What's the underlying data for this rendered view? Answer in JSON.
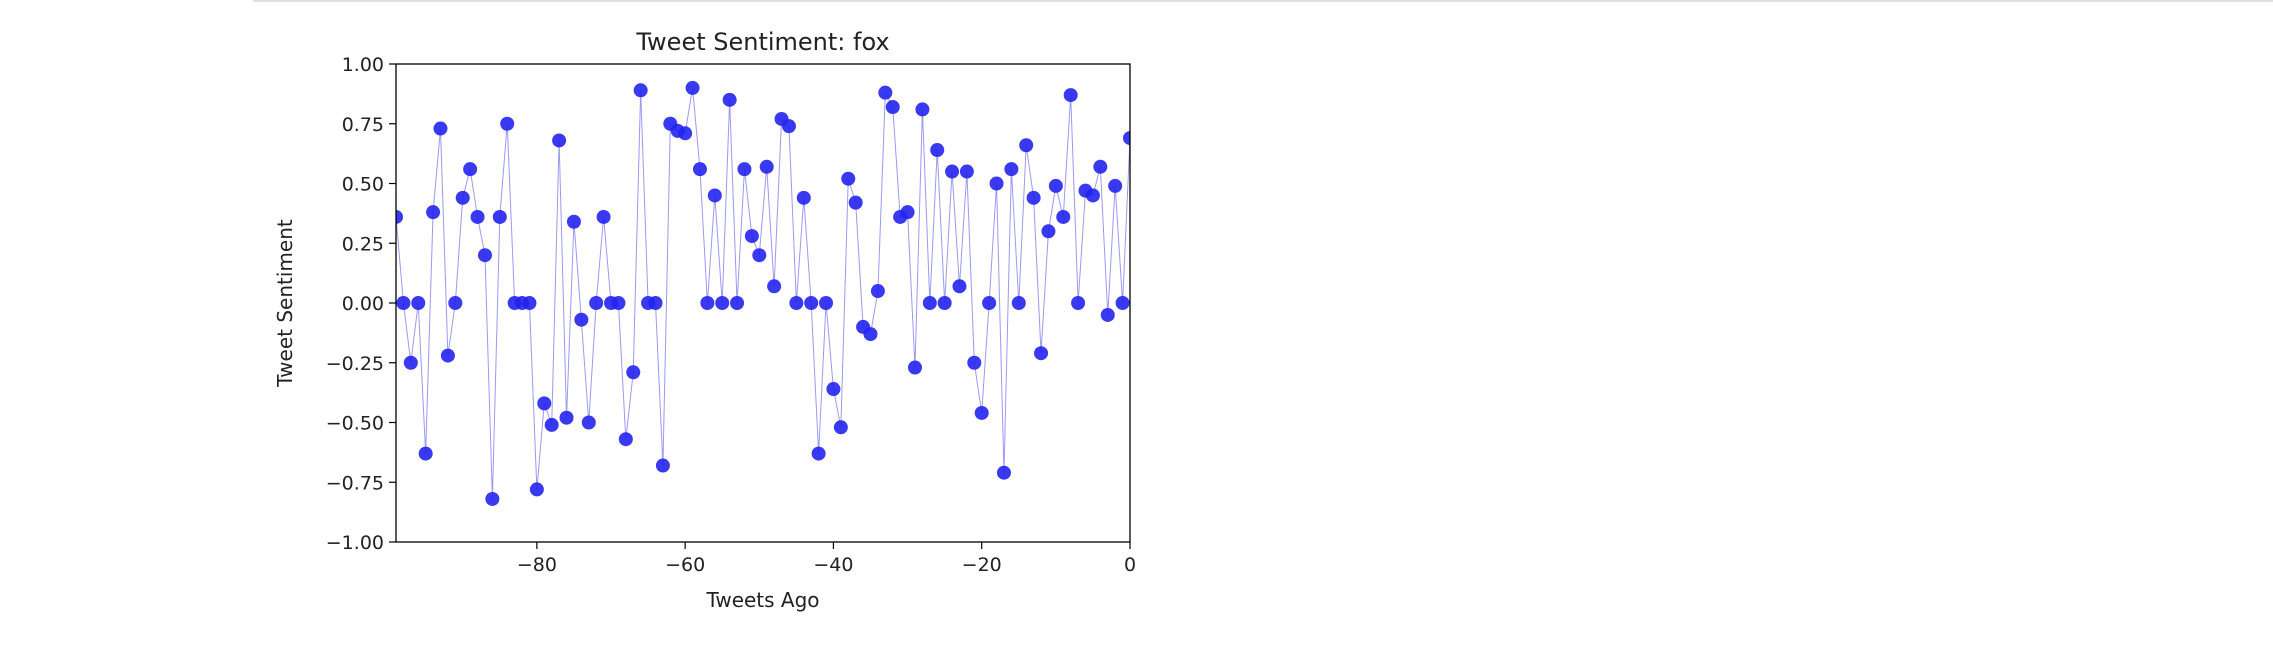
{
  "chart_data": {
    "type": "scatter",
    "title": "Tweet Sentiment: fox",
    "xlabel": "Tweets Ago",
    "ylabel": "Tweet Sentiment",
    "xlim": [
      -99,
      0
    ],
    "ylim": [
      -1.0,
      1.0
    ],
    "xticks": [
      -80,
      -60,
      -40,
      -20,
      0
    ],
    "xtick_labels": [
      "−80",
      "−60",
      "−40",
      "−20",
      "0"
    ],
    "yticks": [
      -1.0,
      -0.75,
      -0.5,
      -0.25,
      0.0,
      0.25,
      0.5,
      0.75,
      1.0
    ],
    "ytick_labels": [
      "−1.00",
      "−0.75",
      "−0.50",
      "−0.25",
      "0.00",
      "0.25",
      "0.50",
      "0.75",
      "1.00"
    ],
    "grid": false,
    "marker_color": "#2323f0",
    "line_color": "#9a9af2",
    "x": [
      -99,
      -98,
      -97,
      -96,
      -95,
      -94,
      -93,
      -92,
      -91,
      -90,
      -89,
      -88,
      -87,
      -86,
      -85,
      -84,
      -83,
      -82,
      -81,
      -80,
      -79,
      -78,
      -77,
      -76,
      -75,
      -74,
      -73,
      -72,
      -71,
      -70,
      -69,
      -68,
      -67,
      -66,
      -65,
      -64,
      -63,
      -62,
      -61,
      -60,
      -59,
      -58,
      -57,
      -56,
      -55,
      -54,
      -53,
      -52,
      -51,
      -50,
      -49,
      -48,
      -47,
      -46,
      -45,
      -44,
      -43,
      -42,
      -41,
      -40,
      -39,
      -38,
      -37,
      -36,
      -35,
      -34,
      -33,
      -32,
      -31,
      -30,
      -29,
      -28,
      -27,
      -26,
      -25,
      -24,
      -23,
      -22,
      -21,
      -20,
      -19,
      -18,
      -17,
      -16,
      -15,
      -14,
      -13,
      -12,
      -11,
      -10,
      -9,
      -8,
      -7,
      -6,
      -5,
      -4,
      -3,
      -2,
      -1,
      0
    ],
    "y": [
      0.36,
      0.0,
      -0.25,
      0.0,
      -0.63,
      0.38,
      0.73,
      -0.22,
      0.0,
      0.44,
      0.56,
      0.36,
      0.2,
      -0.82,
      0.36,
      0.75,
      0.0,
      0.0,
      0.0,
      -0.78,
      -0.42,
      -0.51,
      0.68,
      -0.48,
      0.34,
      -0.07,
      -0.5,
      0.0,
      0.36,
      0.0,
      0.0,
      -0.57,
      -0.29,
      0.89,
      0.0,
      0.0,
      -0.68,
      0.75,
      0.72,
      0.71,
      0.9,
      0.56,
      0.0,
      0.45,
      0.0,
      0.85,
      0.0,
      0.56,
      0.28,
      0.2,
      0.57,
      0.07,
      0.77,
      0.74,
      0.0,
      0.44,
      0.0,
      -0.63,
      0.0,
      -0.36,
      -0.52,
      0.52,
      0.42,
      -0.1,
      -0.13,
      0.05,
      0.88,
      0.82,
      0.36,
      0.38,
      -0.27,
      0.81,
      0.0,
      0.64,
      0.0,
      0.55,
      0.07,
      0.55,
      -0.25,
      -0.46,
      0.0,
      0.5,
      -0.71,
      0.56,
      0.0,
      0.66,
      0.44,
      -0.21,
      0.3,
      0.49,
      0.36,
      0.87,
      0.0,
      0.47,
      0.45,
      0.57,
      -0.05,
      0.49,
      0.0,
      0.69
    ]
  }
}
